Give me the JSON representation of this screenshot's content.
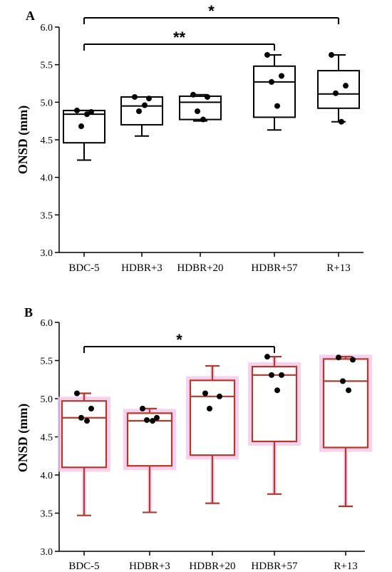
{
  "chart_data": [
    {
      "panel": "A",
      "type": "box",
      "ylabel": "ONSD (mm)",
      "ylim": [
        3.0,
        6.0
      ],
      "yticks": [
        "3.0",
        "3.5",
        "4.0",
        "4.5",
        "5.0",
        "5.5",
        "6.0"
      ],
      "categories": [
        "BDC-5",
        "HDBR+3",
        "HDBR+20",
        "HDBR+57",
        "R+13"
      ],
      "style": {
        "box_color": "#000000",
        "halo_color": null
      },
      "boxes": [
        {
          "min": 4.23,
          "q1": 4.46,
          "median": 4.84,
          "q3": 4.89,
          "max": 4.89,
          "points": [
            4.89,
            4.87,
            4.68,
            4.84
          ]
        },
        {
          "min": 4.55,
          "q1": 4.7,
          "median": 4.95,
          "q3": 5.07,
          "max": 5.07,
          "points": [
            5.07,
            5.05,
            4.88,
            4.96
          ]
        },
        {
          "min": 4.75,
          "q1": 4.77,
          "median": 5.0,
          "q3": 5.08,
          "max": 5.1,
          "points": [
            5.1,
            5.07,
            4.88,
            4.77
          ]
        },
        {
          "min": 4.63,
          "q1": 4.8,
          "median": 5.27,
          "q3": 5.48,
          "max": 5.63,
          "points": [
            5.63,
            5.35,
            5.27,
            4.95
          ]
        },
        {
          "min": 4.74,
          "q1": 4.92,
          "median": 5.11,
          "q3": 5.42,
          "max": 5.63,
          "points": [
            5.63,
            5.22,
            5.12,
            4.74
          ]
        }
      ],
      "significance": [
        {
          "from": 0,
          "to": 3,
          "label": "**"
        },
        {
          "from": 0,
          "to": 4,
          "label": "*"
        }
      ]
    },
    {
      "panel": "B",
      "type": "box",
      "ylabel": "ONSD (mm)",
      "ylim": [
        3.0,
        6.0
      ],
      "yticks": [
        "3.0",
        "3.5",
        "4.0",
        "4.5",
        "5.0",
        "5.5",
        "6.0"
      ],
      "categories": [
        "BDC-5",
        "HDBR+3",
        "HDBR+20",
        "HDBR+57",
        "R+13"
      ],
      "style": {
        "box_color": "#b03a2e",
        "halo_color": "#f5c6ea"
      },
      "boxes": [
        {
          "min": 3.47,
          "q1": 4.1,
          "median": 4.75,
          "q3": 4.97,
          "max": 5.07,
          "points": [
            5.07,
            4.87,
            4.75,
            4.71
          ]
        },
        {
          "min": 3.51,
          "q1": 4.12,
          "median": 4.71,
          "q3": 4.81,
          "max": 4.87,
          "points": [
            4.87,
            4.75,
            4.72,
            4.71
          ]
        },
        {
          "min": 3.63,
          "q1": 4.26,
          "median": 5.03,
          "q3": 5.24,
          "max": 5.43,
          "points": [
            5.07,
            5.03,
            4.87
          ]
        },
        {
          "min": 3.75,
          "q1": 4.44,
          "median": 5.31,
          "q3": 5.42,
          "max": 5.55,
          "points": [
            5.55,
            5.31,
            5.31,
            5.11
          ]
        },
        {
          "min": 3.59,
          "q1": 4.36,
          "median": 5.23,
          "q3": 5.52,
          "max": 5.55,
          "points": [
            5.54,
            5.51,
            5.23,
            5.11
          ]
        }
      ],
      "significance": [
        {
          "from": 0,
          "to": 3,
          "label": "*"
        }
      ]
    }
  ]
}
